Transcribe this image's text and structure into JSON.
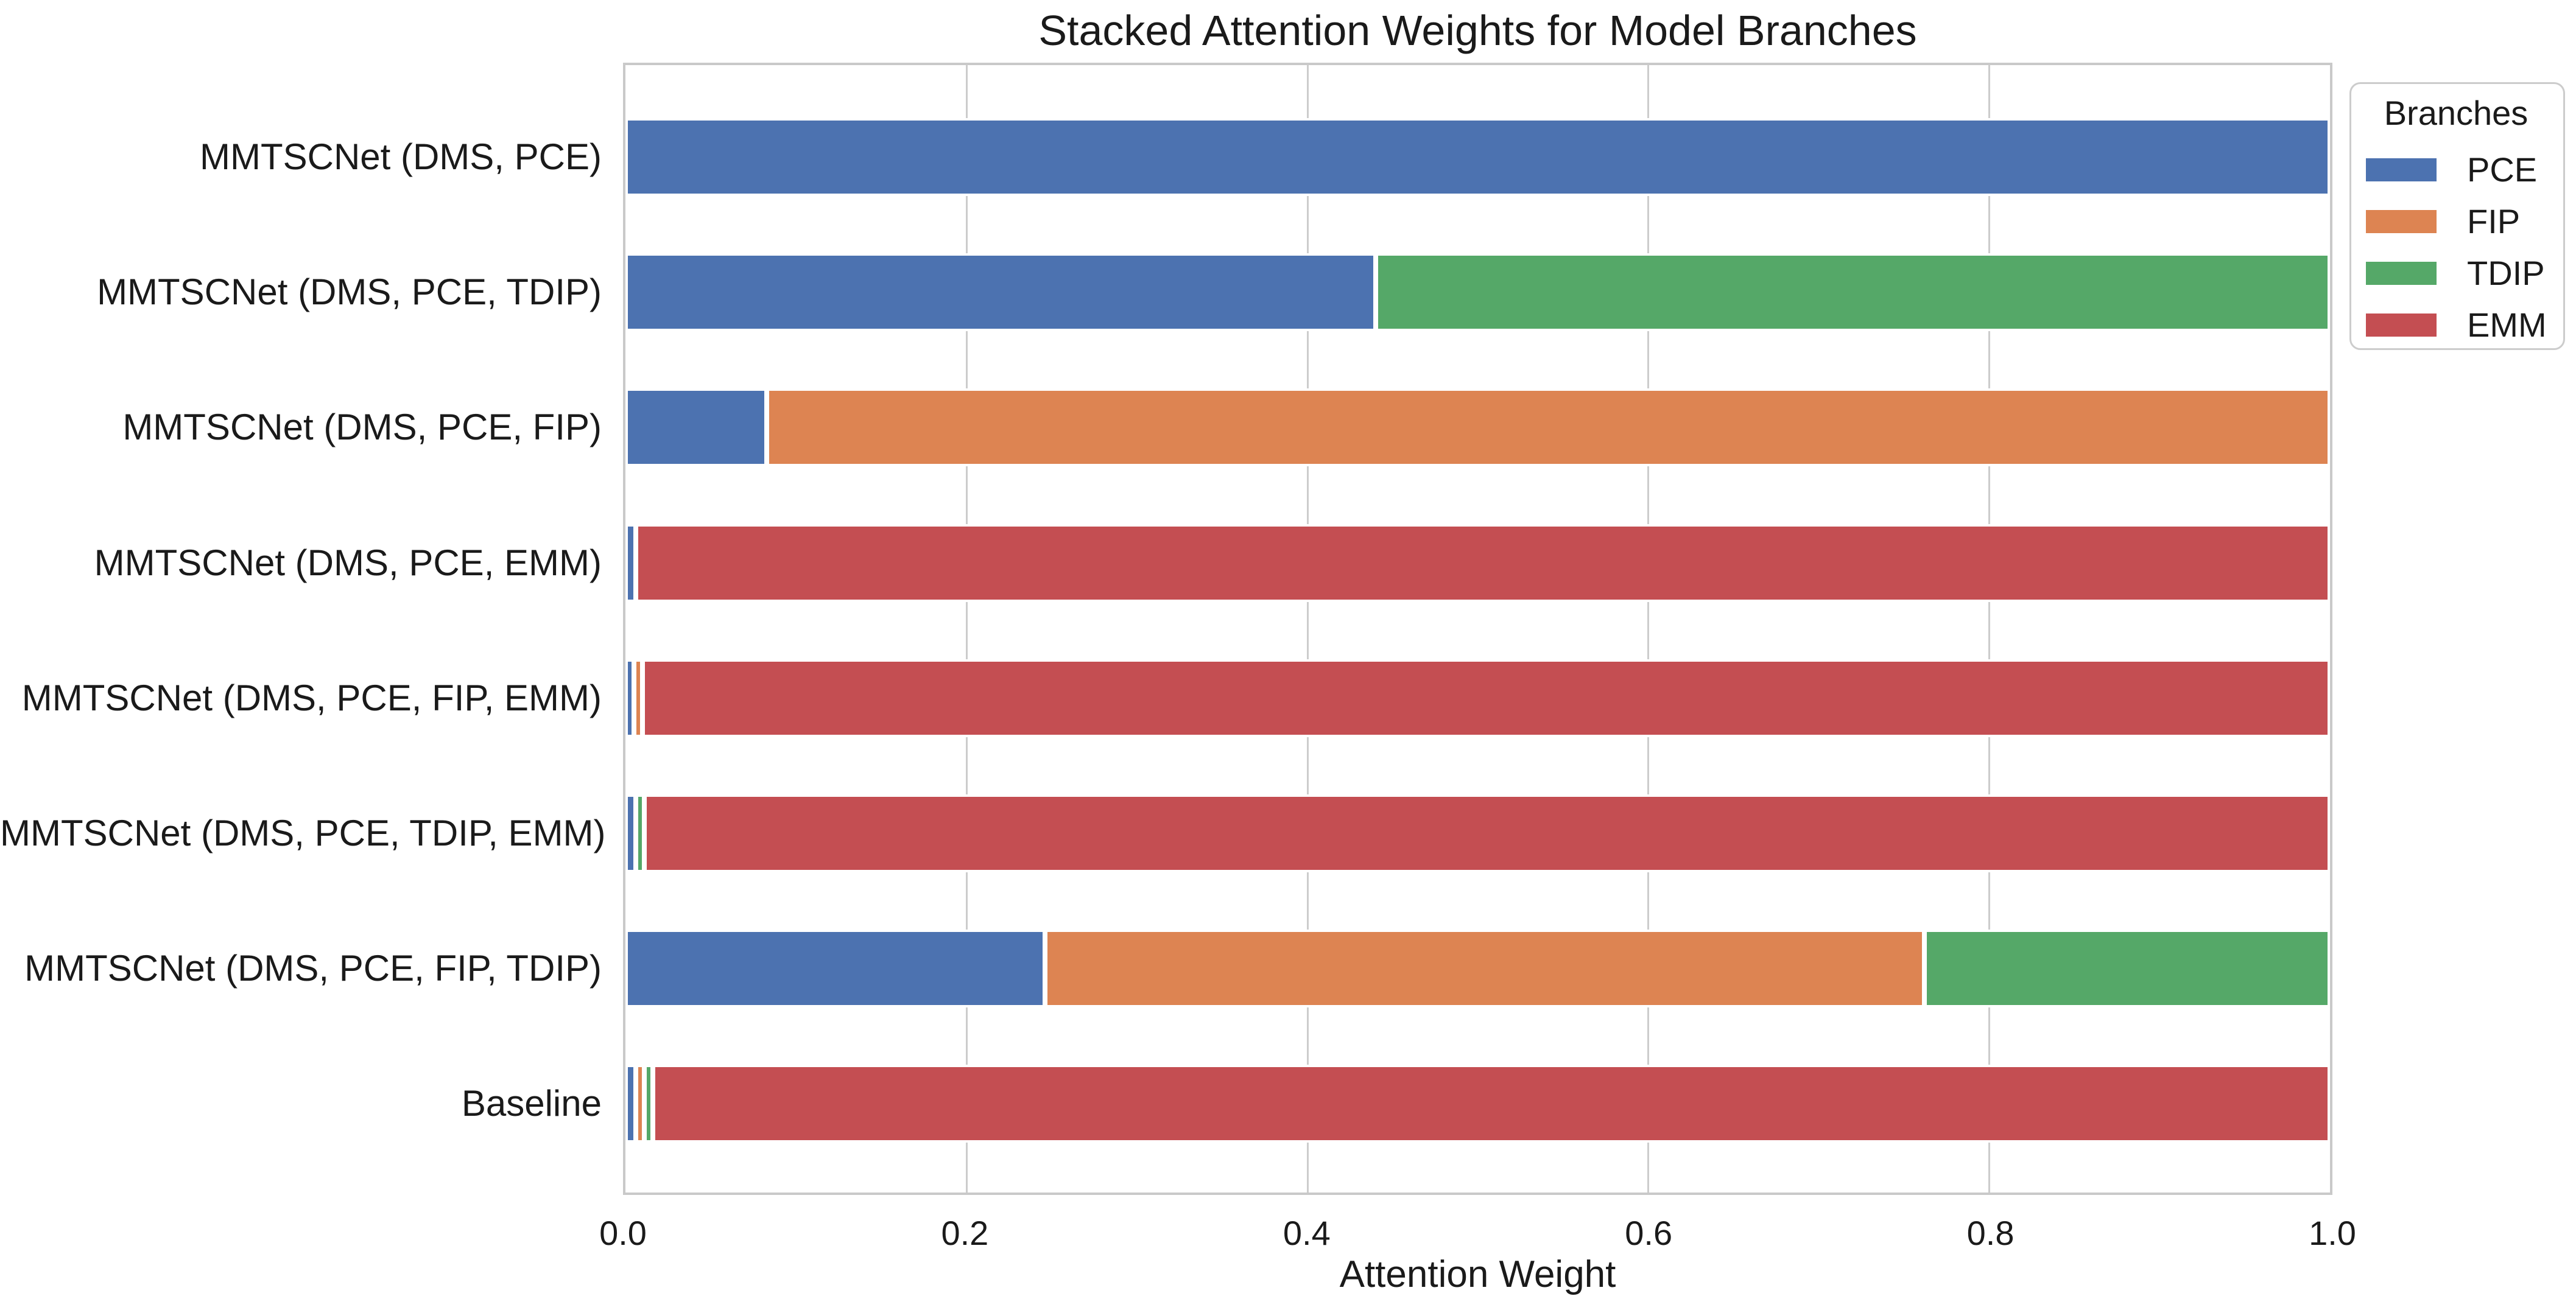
{
  "chart_data": {
    "type": "bar",
    "orientation": "horizontal",
    "stacked": true,
    "title": "Stacked Attention Weights for Model Branches",
    "xlabel": "Attention Weight",
    "ylabel": "",
    "xlim": [
      0.0,
      1.0
    ],
    "xticks": [
      "0.0",
      "0.2",
      "0.4",
      "0.6",
      "0.8",
      "1.0"
    ],
    "grid": "vertical gridlines at 0.2 intervals, light gray, white background",
    "legend_title": "Branches",
    "legend_position": "outside upper right",
    "categories": [
      "MMTSCNet (DMS, PCE)",
      "MMTSCNet (DMS, PCE, TDIP)",
      "MMTSCNet (DMS, PCE, FIP)",
      "MMTSCNet (DMS, PCE, EMM)",
      "MMTSCNet (DMS, PCE, FIP, EMM)",
      "MMTSCNet (DMS, PCE, TDIP, EMM)",
      "MMTSCNet (DMS, PCE, FIP, TDIP)",
      "Baseline"
    ],
    "series": [
      {
        "name": "PCE",
        "color": "#4C72B0",
        "values": [
          1.0,
          0.44,
          0.083,
          0.006,
          0.005,
          0.006,
          0.246,
          0.006
        ]
      },
      {
        "name": "FIP",
        "color": "#DD8452",
        "values": [
          0,
          0,
          0.917,
          0,
          0.005,
          0,
          0.516,
          0.005
        ]
      },
      {
        "name": "TDIP",
        "color": "#55A868",
        "values": [
          0,
          0.56,
          0,
          0,
          0,
          0.005,
          0.238,
          0.005
        ]
      },
      {
        "name": "EMM",
        "color": "#C44E52",
        "values": [
          0,
          0,
          0,
          0.994,
          0.99,
          0.989,
          0,
          0.984
        ]
      }
    ],
    "colors": {
      "grid": "#cccccc",
      "spine": "#c9c9c9",
      "text": "#1a1a1a",
      "bar_edge": "#ffffff"
    }
  }
}
